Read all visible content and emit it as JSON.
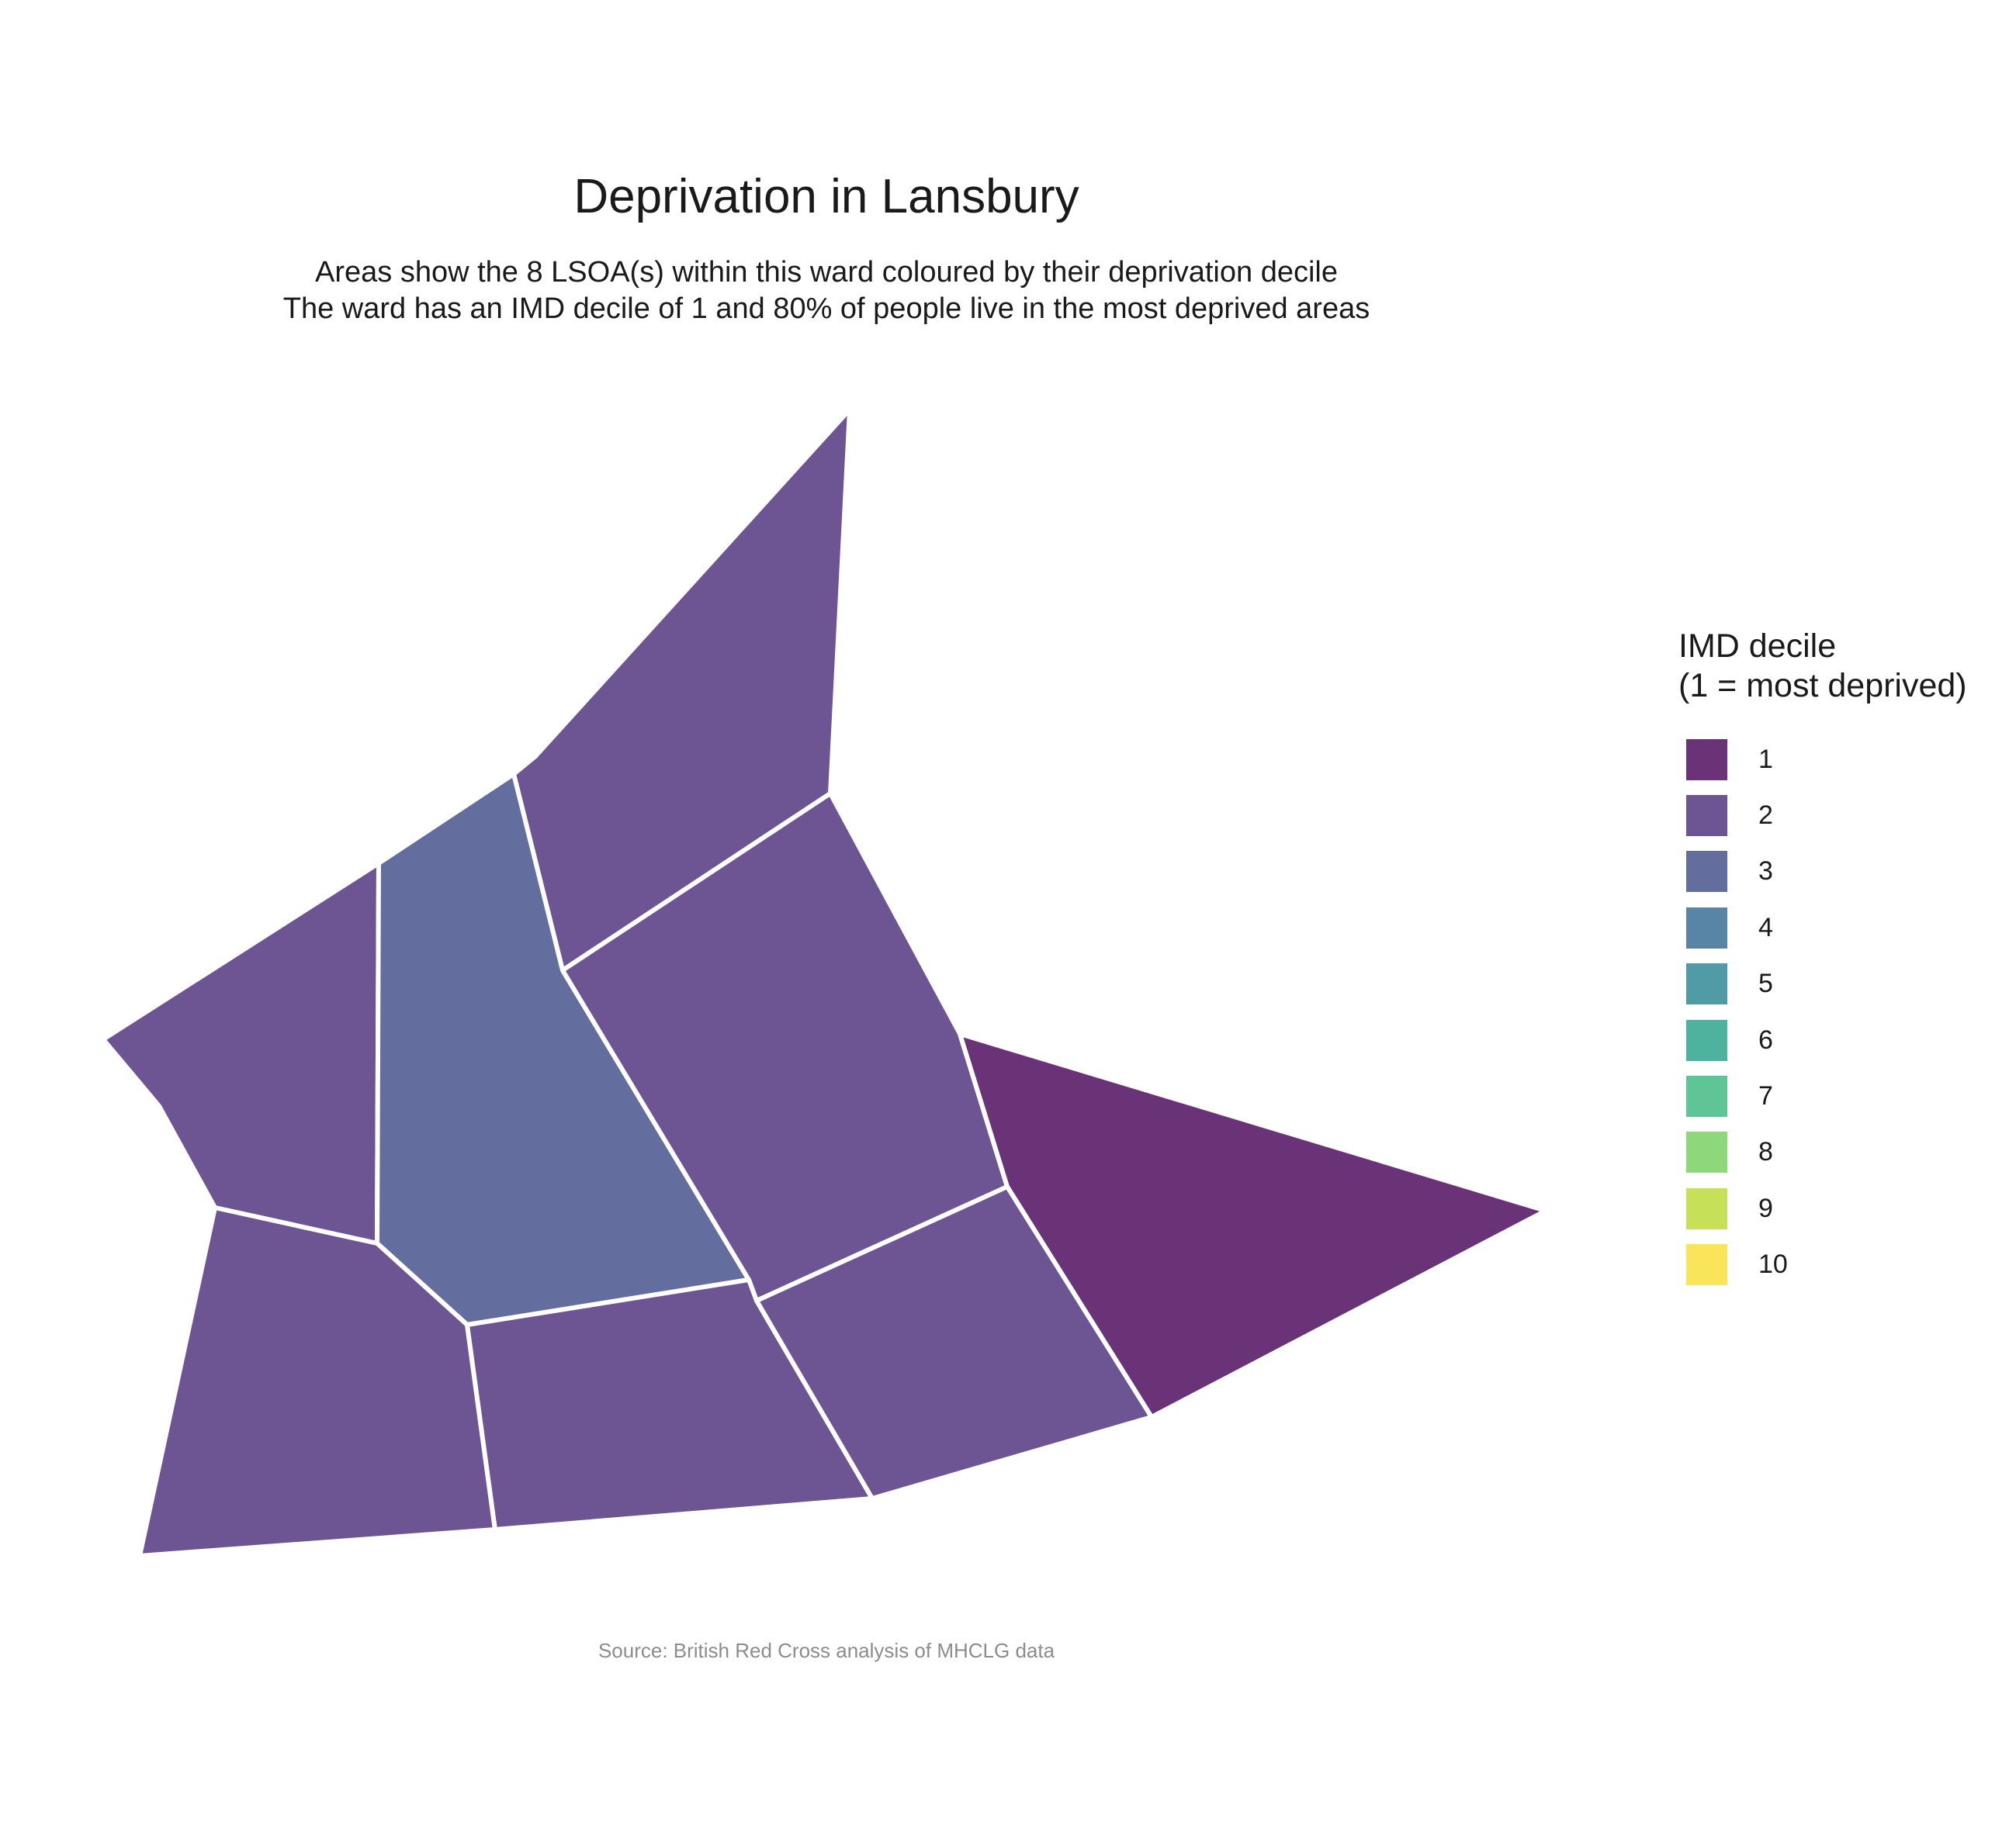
{
  "title": "Deprivation in Lansbury",
  "subtitle_line1": "Areas show the 8 LSOA(s) within this ward coloured by their deprivation decile",
  "subtitle_line2": "The ward has an IMD decile of 1 and 80% of people live in the most deprived areas",
  "caption": "Source: British Red Cross analysis of MHCLG data",
  "legend": {
    "title_line1": "IMD decile",
    "title_line2": "(1 = most deprived)",
    "items": [
      {
        "label": "1",
        "color": "#6a3378"
      },
      {
        "label": "2",
        "color": "#6d5493"
      },
      {
        "label": "3",
        "color": "#636e9f"
      },
      {
        "label": "4",
        "color": "#5884a6"
      },
      {
        "label": "5",
        "color": "#519ba6"
      },
      {
        "label": "6",
        "color": "#4db39f"
      },
      {
        "label": "7",
        "color": "#5fc596"
      },
      {
        "label": "8",
        "color": "#8ed77b"
      },
      {
        "label": "9",
        "color": "#c6e058"
      },
      {
        "label": "10",
        "color": "#fae55a"
      }
    ]
  },
  "areas": [
    {
      "name": "north",
      "decile": 2
    },
    {
      "name": "west",
      "decile": 2
    },
    {
      "name": "central",
      "decile": 3
    },
    {
      "name": "east-central",
      "decile": 2
    },
    {
      "name": "east",
      "decile": 1
    },
    {
      "name": "south-west",
      "decile": 2
    },
    {
      "name": "south-central",
      "decile": 2
    },
    {
      "name": "south-east",
      "decile": 2
    }
  ]
}
